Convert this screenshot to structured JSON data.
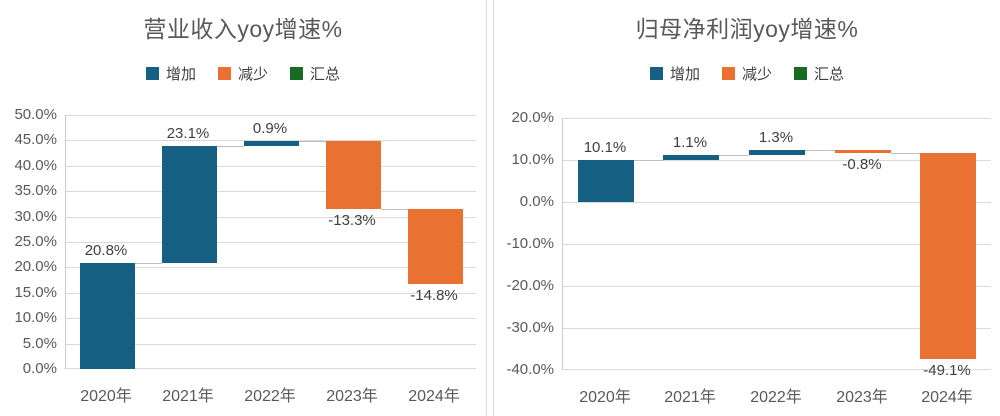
{
  "theme": {
    "increase_color": "#156082",
    "decrease_color": "#E97132",
    "total_color": "#196B24",
    "grid_color": "#D9D9D9",
    "axis_color": "#C9C9C9",
    "text_color": "#595959",
    "data_label_color": "#404040"
  },
  "chart_data": [
    {
      "type": "bar",
      "subtype": "waterfall",
      "title": "营业收入yoy增速%",
      "legend": [
        {
          "label": "增加",
          "color": "#156082"
        },
        {
          "label": "减少",
          "color": "#E97132"
        },
        {
          "label": "汇总",
          "color": "#196B24"
        }
      ],
      "legend_position": "top",
      "grid": true,
      "categories": [
        "2020年",
        "2021年",
        "2022年",
        "2023年",
        "2024年"
      ],
      "values": [
        20.8,
        23.1,
        0.9,
        -13.3,
        -14.8
      ],
      "data_labels": [
        "20.8%",
        "23.1%",
        "0.9%",
        "-13.3%",
        "-14.8%"
      ],
      "cumulative": [
        20.8,
        43.9,
        44.8,
        31.5,
        16.7
      ],
      "ylim": [
        0,
        50
      ],
      "y_step": 5,
      "y_ticks": [
        "50.0%",
        "45.0%",
        "40.0%",
        "35.0%",
        "30.0%",
        "25.0%",
        "20.0%",
        "15.0%",
        "10.0%",
        "5.0%",
        "0.0%"
      ]
    },
    {
      "type": "bar",
      "subtype": "waterfall",
      "title": "归母净利润yoy增速%",
      "legend": [
        {
          "label": "增加",
          "color": "#156082"
        },
        {
          "label": "减少",
          "color": "#E97132"
        },
        {
          "label": "汇总",
          "color": "#196B24"
        }
      ],
      "legend_position": "top",
      "grid": true,
      "categories": [
        "2020年",
        "2021年",
        "2022年",
        "2023年",
        "2024年"
      ],
      "values": [
        10.1,
        1.1,
        1.3,
        -0.8,
        -49.1
      ],
      "data_labels": [
        "10.1%",
        "1.1%",
        "1.3%",
        "-0.8%",
        "-49.1%"
      ],
      "cumulative": [
        10.1,
        11.2,
        12.5,
        11.7,
        -37.4
      ],
      "ylim": [
        -40,
        20
      ],
      "y_step": 10,
      "y_ticks": [
        "20.0%",
        "10.0%",
        "0.0%",
        "-10.0%",
        "-20.0%",
        "-30.0%",
        "-40.0%"
      ]
    }
  ]
}
